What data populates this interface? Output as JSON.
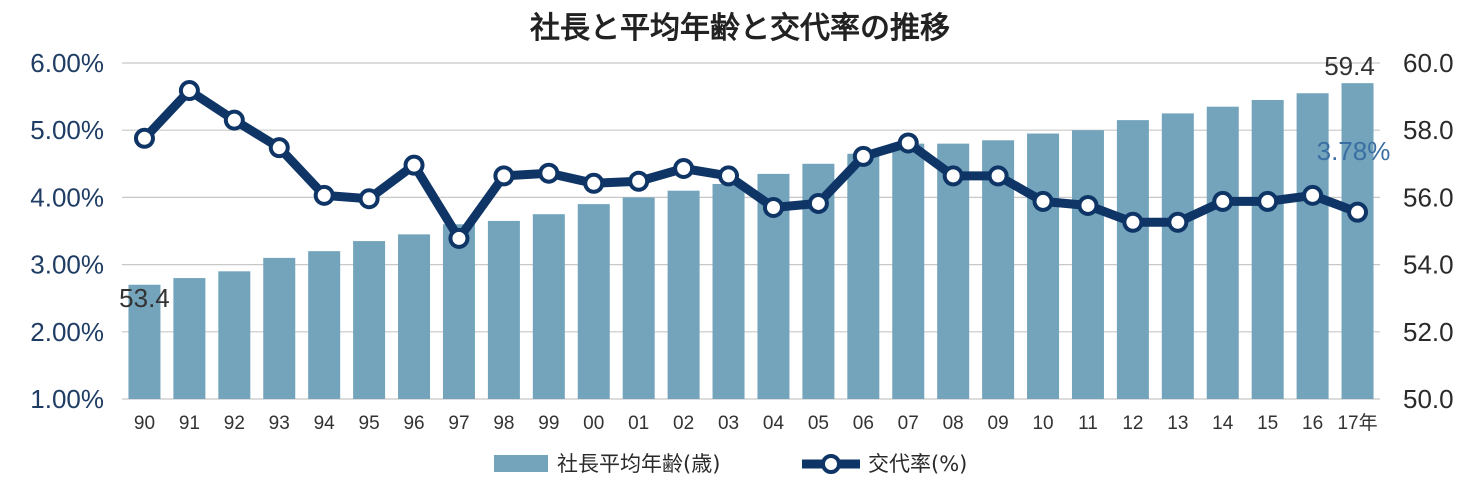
{
  "chart_data": {
    "type": "bar+line",
    "title": "社長と平均年齢と交代率の推移",
    "categories": [
      "90",
      "91",
      "92",
      "93",
      "94",
      "95",
      "96",
      "97",
      "98",
      "99",
      "00",
      "01",
      "02",
      "03",
      "04",
      "05",
      "06",
      "07",
      "08",
      "09",
      "10",
      "11",
      "12",
      "13",
      "14",
      "15",
      "16",
      "17年"
    ],
    "series": [
      {
        "name": "社長平均年齢(歳)",
        "type": "bar",
        "axis": "right",
        "color": "#73a4bc",
        "values": [
          53.4,
          53.6,
          53.8,
          54.2,
          54.4,
          54.7,
          54.9,
          55.2,
          55.3,
          55.5,
          55.8,
          56.0,
          56.2,
          56.4,
          56.7,
          57.0,
          57.3,
          57.6,
          57.6,
          57.7,
          57.9,
          58.0,
          58.3,
          58.5,
          58.7,
          58.9,
          59.1,
          59.4
        ]
      },
      {
        "name": "交代率(%)",
        "type": "line",
        "axis": "left",
        "color": "#0e3566",
        "values": [
          4.88,
          5.59,
          5.15,
          4.74,
          4.03,
          3.98,
          4.48,
          3.39,
          4.32,
          4.36,
          4.21,
          4.24,
          4.43,
          4.32,
          3.85,
          3.91,
          4.61,
          4.81,
          4.32,
          4.32,
          3.94,
          3.88,
          3.63,
          3.63,
          3.94,
          3.94,
          4.03,
          3.78
        ]
      }
    ],
    "y_left": {
      "min": 1.0,
      "max": 6.0,
      "ticks": [
        "1.00%",
        "2.00%",
        "3.00%",
        "4.00%",
        "5.00%",
        "6.00%"
      ]
    },
    "y_right": {
      "min": 50.0,
      "max": 60.0,
      "ticks": [
        "50.0",
        "52.0",
        "54.0",
        "56.0",
        "58.0",
        "60.0"
      ]
    },
    "data_labels": {
      "age_first": "53.4",
      "age_last": "59.4",
      "rate_last": "3.78%"
    },
    "grid": true,
    "legend": {
      "position": "bottom",
      "items": [
        "社長平均年齢(歳)",
        "交代率(%)"
      ]
    }
  }
}
